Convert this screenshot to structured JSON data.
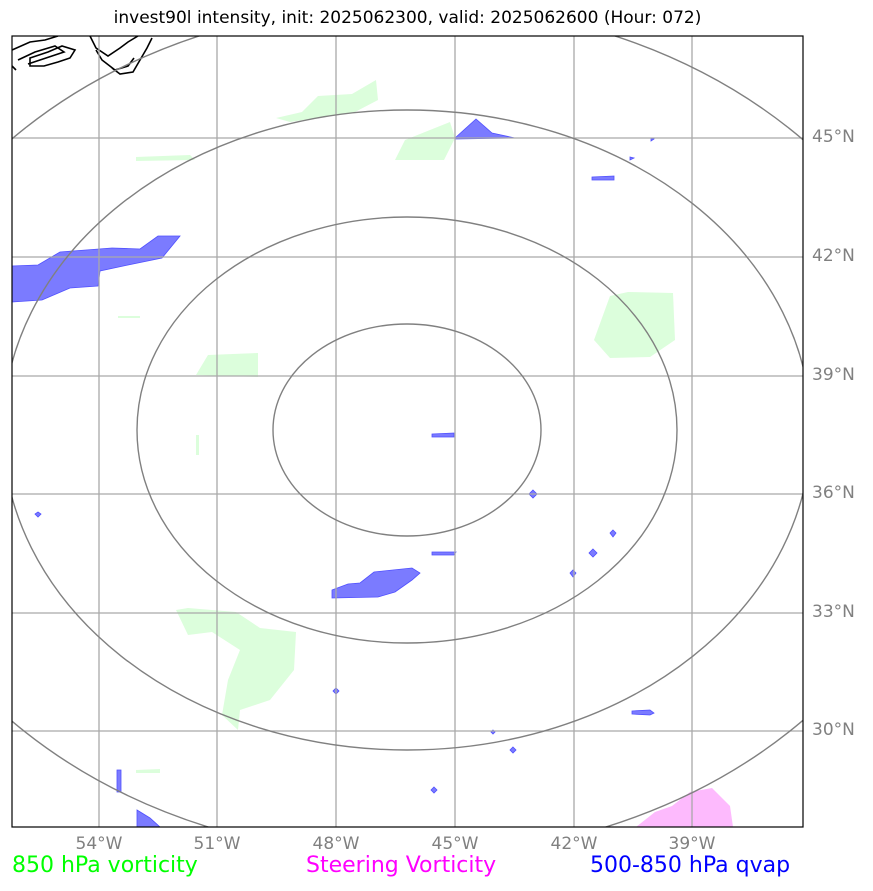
{
  "title": "invest90l intensity, init: 2025062300, valid: 2025062600 (Hour: 072)",
  "lat_labels": [
    "45°N",
    "42°N",
    "39°N",
    "36°N",
    "33°N",
    "30°N"
  ],
  "lon_labels": [
    "54°W",
    "51°W",
    "48°W",
    "45°W",
    "42°W",
    "39°W"
  ],
  "legend": {
    "vort850": "850 hPa vorticity",
    "steering": "Steering Vorticity",
    "qvap": "500-850 hPa qvap"
  },
  "colors": {
    "vort850_text": "#00ff00",
    "steering_text": "#ff00ff",
    "qvap_text": "#0000ff",
    "vort850_fill": "#dcfedc",
    "steering_fill": "#fdbafd",
    "qvap_fill": "#7b7bff",
    "grid": "#a9a9a9",
    "rings": "#808080",
    "coast": "#000000"
  }
}
